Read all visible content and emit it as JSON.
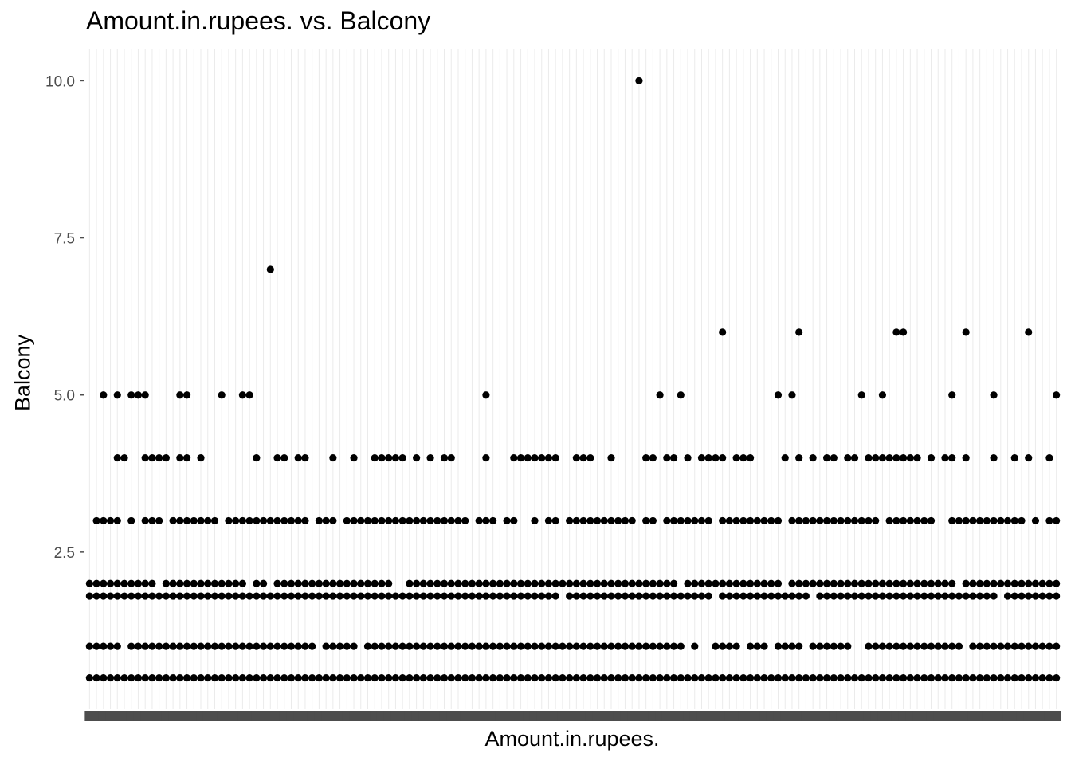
{
  "chart_data": {
    "type": "scatter",
    "title": "Amount.in.rupees. vs. Balcony",
    "xlabel": "Amount.in.rupees.",
    "ylabel": "Balcony",
    "x_axis": "categorical",
    "x_category_count": 140,
    "y_scale": "discrete",
    "ylim": [
      0.0,
      10.5
    ],
    "y_ticks": [
      2.5,
      5.0,
      7.5,
      10.0
    ],
    "y_tick_labels": [
      "2.5",
      "5.0",
      "7.5",
      "10.0"
    ],
    "grid": "major-vertical",
    "colors": {
      "point": "#000000",
      "grid": "#ebebeb",
      "tick_text": "#4d4d4d"
    },
    "series": [
      {
        "points": [
          {
            "x": 80,
            "y": 10
          },
          {
            "x": 27,
            "y": 7
          },
          {
            "x": 92,
            "y": 6
          },
          {
            "x": 103,
            "y": 6
          },
          {
            "x": 117,
            "y": 6
          },
          {
            "x": 118,
            "y": 6
          },
          {
            "x": 127,
            "y": 6
          },
          {
            "x": 136,
            "y": 6
          },
          {
            "x": 3,
            "y": 5
          },
          {
            "x": 5,
            "y": 5
          },
          {
            "x": 7,
            "y": 5
          },
          {
            "x": 8,
            "y": 5
          },
          {
            "x": 9,
            "y": 5
          },
          {
            "x": 14,
            "y": 5
          },
          {
            "x": 15,
            "y": 5
          },
          {
            "x": 20,
            "y": 5
          },
          {
            "x": 23,
            "y": 5
          },
          {
            "x": 24,
            "y": 5
          },
          {
            "x": 58,
            "y": 5
          },
          {
            "x": 83,
            "y": 5
          },
          {
            "x": 86,
            "y": 5
          },
          {
            "x": 100,
            "y": 5
          },
          {
            "x": 102,
            "y": 5
          },
          {
            "x": 112,
            "y": 5
          },
          {
            "x": 115,
            "y": 5
          },
          {
            "x": 125,
            "y": 5
          },
          {
            "x": 140,
            "y": 5
          },
          {
            "x": 131,
            "y": 5
          }
        ]
      }
    ],
    "dense_rows": [
      {
        "y": 4,
        "count": 72,
        "seed": 11
      },
      {
        "y": 3,
        "count": 118,
        "seed": 23
      },
      {
        "y": 2,
        "count": 132,
        "seed": 37
      },
      {
        "y": 1.8,
        "count": 136,
        "seed": 41
      },
      {
        "y": 1,
        "count": 128,
        "seed": 53
      },
      {
        "y": 0.5,
        "count": 140,
        "seed": 67
      }
    ]
  }
}
